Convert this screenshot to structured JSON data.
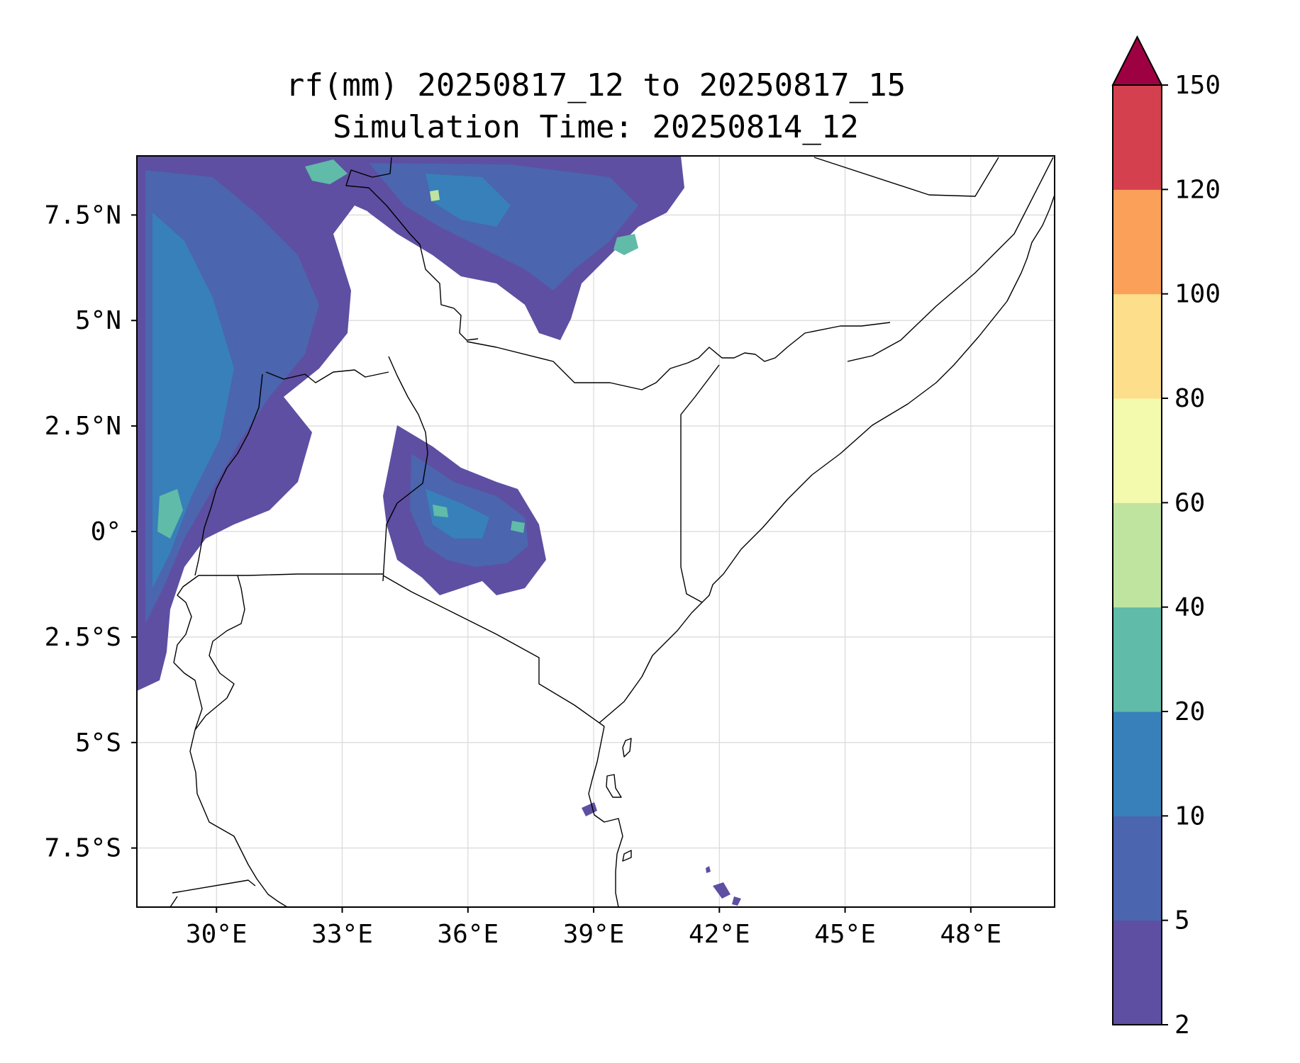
{
  "chart_data": {
    "type": "contour-map",
    "title": "rf(mm) 20250817_12 to 20250817_15",
    "subtitle": "Simulation Time: 20250814_12",
    "x_ticks": [
      "30°E",
      "33°E",
      "36°E",
      "39°E",
      "42°E",
      "45°E",
      "48°E"
    ],
    "y_ticks": [
      "7.5°N",
      "5°N",
      "2.5°N",
      "0°",
      "2.5°S",
      "5°S",
      "7.5°S"
    ],
    "lon_range": [
      28.1,
      50.0
    ],
    "lat_range": [
      -8.9,
      8.9
    ],
    "grid": true,
    "colorbar": {
      "position": "right",
      "extend": "max",
      "levels": [
        2,
        5,
        10,
        20,
        40,
        60,
        80,
        100,
        120,
        150
      ],
      "tick_labels": [
        "2",
        "5",
        "10",
        "20",
        "40",
        "60",
        "80",
        "100",
        "120",
        "150"
      ],
      "colors": [
        "#5e4fa2",
        "#4b65ae",
        "#3880b9",
        "#60bba8",
        "#bfe4a0",
        "#f3faad",
        "#fdde8a",
        "#fba059",
        "#d5404e",
        "#9e0142"
      ]
    }
  }
}
